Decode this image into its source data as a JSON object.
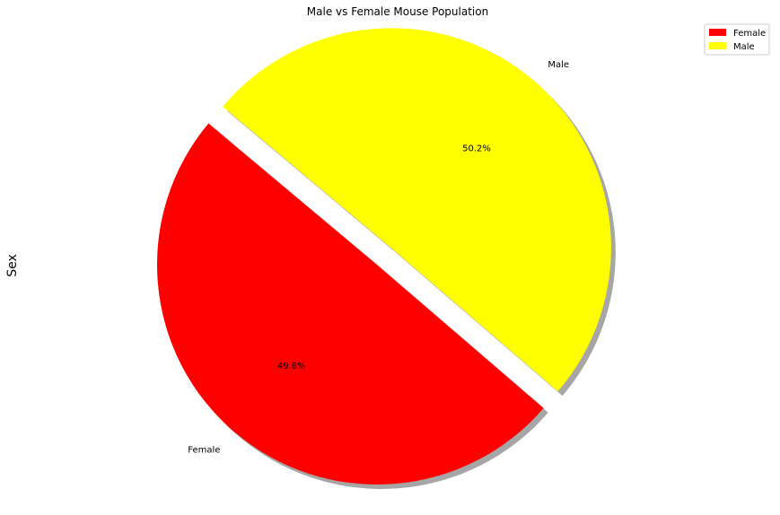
{
  "chart_data": {
    "type": "pie",
    "title": "Male vs Female Mouse Population",
    "ylabel": "Sex",
    "categories": [
      "Female",
      "Male"
    ],
    "values": [
      49.8,
      50.2
    ],
    "percent_labels": [
      "49.8%",
      "50.2%"
    ],
    "colors": [
      "#ff0000",
      "#ffff00"
    ],
    "explode": [
      0,
      0.1
    ],
    "shadow": true,
    "start_angle_deg": 140,
    "legend": {
      "placement": "top-right",
      "entries": [
        "Female",
        "Male"
      ]
    }
  }
}
